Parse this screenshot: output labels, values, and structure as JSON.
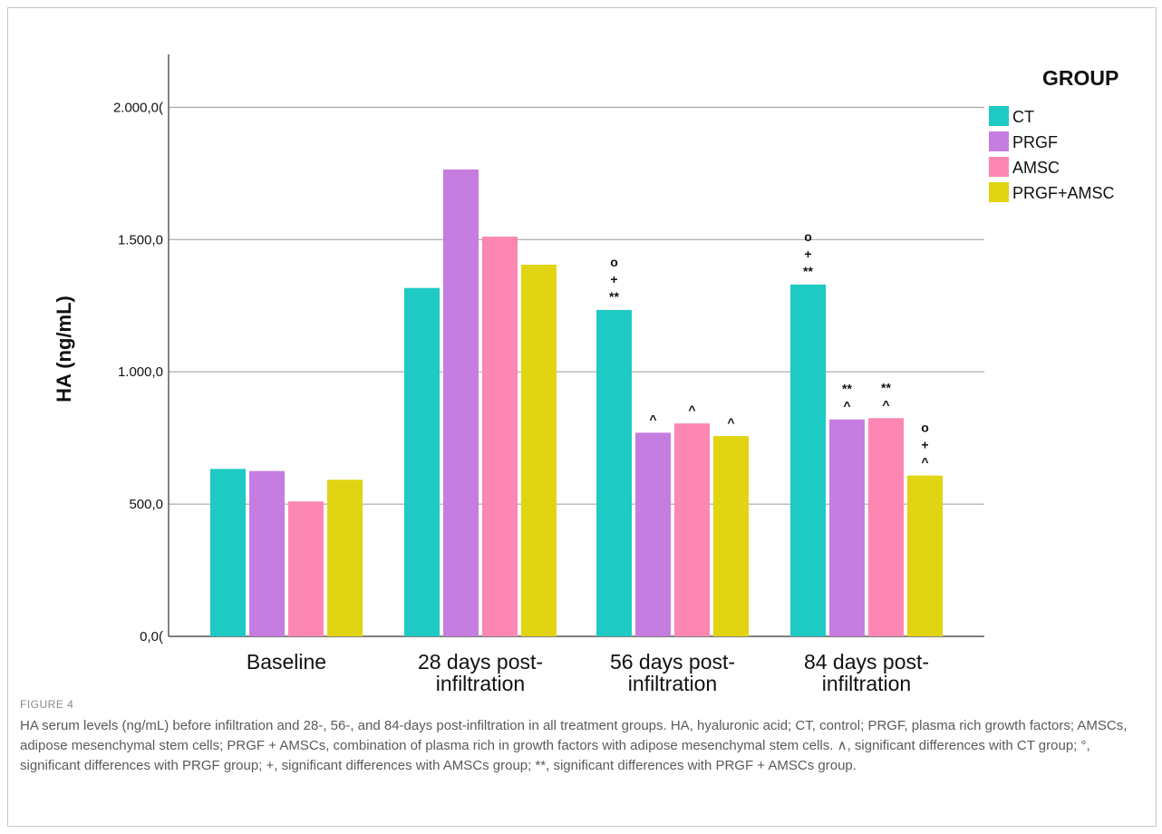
{
  "chart_data": {
    "type": "bar",
    "ylabel": "HA (ng/mL)",
    "ylim": [
      0,
      2200
    ],
    "yticks": [
      0,
      500,
      1000,
      1500,
      2000
    ],
    "ytick_labels": [
      "0,0(",
      "500,0",
      "1.000,0",
      "1.500,0",
      "2.000,0("
    ],
    "grid": "horizontal",
    "legend_position": "top-right",
    "legend_title": "GROUP",
    "categories": [
      [
        "Baseline"
      ],
      [
        "28 days post-",
        "infiltration"
      ],
      [
        "56 days post-",
        "infiltration"
      ],
      [
        "84 days post-",
        "infiltration"
      ]
    ],
    "series": [
      {
        "name": "CT",
        "color": "#1fc9c4",
        "values": [
          633,
          1317,
          1234,
          1330
        ]
      },
      {
        "name": "PRGF",
        "color": "#c57de0",
        "values": [
          625,
          1765,
          770,
          820
        ]
      },
      {
        "name": "AMSC",
        "color": "#fb87b2",
        "values": [
          510,
          1511,
          805,
          825
        ]
      },
      {
        "name": "PRGF+AMSC",
        "color": "#e1d513",
        "values": [
          592,
          1405,
          757,
          608
        ]
      }
    ],
    "annotations": [
      {
        "category": 2,
        "series": 0,
        "marks": [
          "o",
          "+",
          "**"
        ]
      },
      {
        "category": 2,
        "series": 1,
        "marks": [
          "^"
        ]
      },
      {
        "category": 2,
        "series": 2,
        "marks": [
          "^"
        ]
      },
      {
        "category": 2,
        "series": 3,
        "marks": [
          "^"
        ]
      },
      {
        "category": 3,
        "series": 0,
        "marks": [
          "o",
          "+",
          "**"
        ]
      },
      {
        "category": 3,
        "series": 1,
        "marks": [
          "**",
          "^"
        ]
      },
      {
        "category": 3,
        "series": 2,
        "marks": [
          "**",
          "^"
        ]
      },
      {
        "category": 3,
        "series": 3,
        "marks": [
          "o",
          "+",
          "^"
        ]
      }
    ]
  },
  "caption": {
    "label": "FIGURE 4",
    "text": "HA serum levels (ng/mL) before infiltration and 28-, 56-, and 84-days post-infiltration in all treatment groups. HA, hyaluronic acid; CT, control; PRGF, plasma rich growth factors; AMSCs, adipose mesenchymal stem cells; PRGF + AMSCs, combination of plasma rich in growth factors with adipose mesenchymal stem cells. ∧, significant differences with CT group; °, significant differences with PRGF group; +, significant differences with AMSCs group; **, significant differences with PRGF + AMSCs group."
  }
}
